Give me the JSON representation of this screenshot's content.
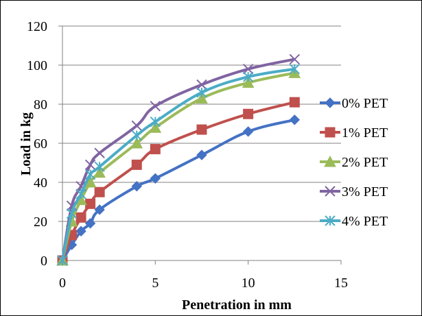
{
  "chart_data": {
    "type": "line",
    "xlabel": "Penetration in mm",
    "ylabel": "Load in kg",
    "xlim": [
      0,
      15
    ],
    "ylim": [
      0,
      120
    ],
    "xticks": [
      0,
      5,
      10,
      15
    ],
    "yticks": [
      0,
      20,
      40,
      60,
      80,
      100,
      120
    ],
    "grid": "horizontal",
    "legend": "right",
    "x": [
      0,
      0.5,
      1,
      1.5,
      2,
      4,
      5,
      7.5,
      10,
      12.5
    ],
    "series": [
      {
        "name": "0% PET",
        "color": "#4472C4",
        "marker": "diamond",
        "values": [
          0,
          8,
          15,
          19,
          26,
          38,
          42,
          54,
          66,
          72
        ]
      },
      {
        "name": "1% PET",
        "color": "#C0504D",
        "marker": "square",
        "values": [
          0,
          13,
          22,
          29,
          35,
          49,
          57,
          67,
          75,
          81
        ]
      },
      {
        "name": "2% PET",
        "color": "#9BBB59",
        "marker": "triangle",
        "values": [
          0,
          20,
          31,
          40,
          45,
          60,
          68,
          83,
          91,
          96
        ]
      },
      {
        "name": "3% PET",
        "color": "#8064A2",
        "marker": "x",
        "values": [
          0,
          28,
          38,
          49,
          55,
          69,
          79,
          90,
          98,
          103
        ]
      },
      {
        "name": "4% PET",
        "color": "#4BACC6",
        "marker": "star",
        "values": [
          0,
          24,
          34,
          44,
          48,
          64,
          71,
          86,
          94,
          98
        ]
      }
    ]
  }
}
